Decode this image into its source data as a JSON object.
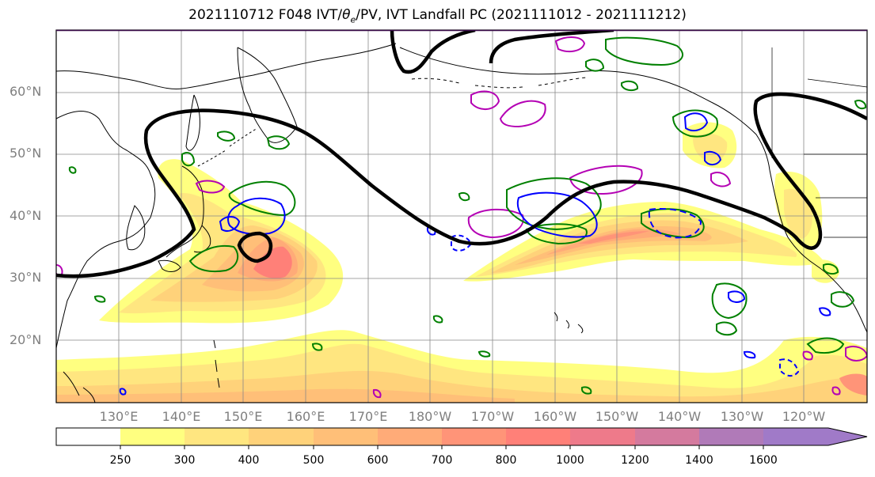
{
  "title": {
    "prefix": "2021110712 F048 IVT/",
    "theta": "θ",
    "theta_sub": "e",
    "suffix": "/PV, IVT Landfall PC (2021111012 - 2021111212)"
  },
  "lat_labels": [
    "60°N",
    "50°N",
    "40°N",
    "30°N",
    "20°N"
  ],
  "lon_labels": [
    "130°E",
    "140°E",
    "150°E",
    "160°E",
    "170°E",
    "180°W",
    "170°W",
    "160°W",
    "150°W",
    "140°W",
    "130°W",
    "120°W"
  ],
  "colorbar": {
    "levels": [
      "250",
      "300",
      "400",
      "500",
      "600",
      "700",
      "800",
      "1000",
      "1200",
      "1400",
      "1600"
    ],
    "colors": [
      "#ffffff",
      "#ffff80",
      "#ffe680",
      "#ffd27a",
      "#ffbf78",
      "#ffab78",
      "#ff9478",
      "#ff8078",
      "#ee7a8a",
      "#d47a9e",
      "#b07ab8",
      "#a07ac8"
    ]
  },
  "colors": {
    "ivt_low": "#ffff80",
    "ivt_mid": "#ffbf78",
    "ivt_high": "#ff8078",
    "pc_contour": "#000000",
    "pv_contour": "#b400b4",
    "theta_e_contour": "#008000",
    "blue_contour": "#0000ff"
  }
}
